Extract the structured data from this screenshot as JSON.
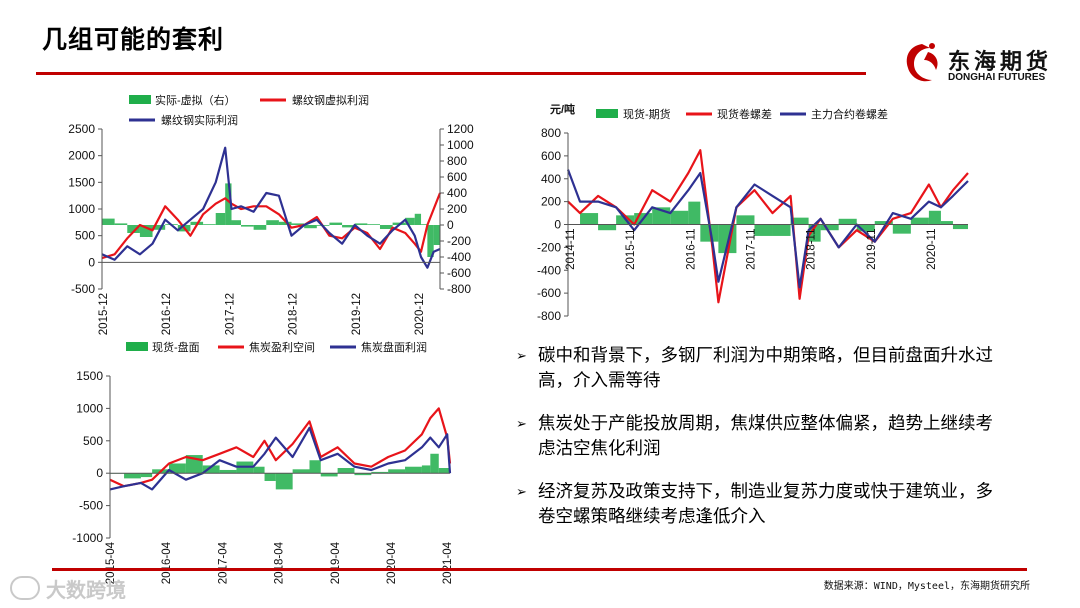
{
  "page": {
    "title": "几组可能的套利",
    "logo_cn": "东海期货",
    "logo_en": "DONGHAI FUTURES",
    "source": "数据来源：WIND，Mysteel，东海期货研究所",
    "watermark": "大数跨境",
    "colors": {
      "accent": "#c00000",
      "green": "#1fae4a",
      "red": "#e8141a",
      "blue": "#2e3192"
    }
  },
  "bullets": [
    {
      "mark": "➢",
      "text": "碳中和背景下，多钢厂利润为中期策略，但目前盘面升水过高，介入需等待"
    },
    {
      "mark": "➢",
      "text": "焦炭处于产能投放周期，焦煤供应整体偏紧，趋势上继续考虑沽空焦化利润"
    },
    {
      "mark": "➢",
      "text": "经济复苏及政策支持下，制造业复苏力度或快于建筑业，多卷空螺策略继续考虑逢低介入"
    }
  ],
  "chart_data": [
    {
      "id": "chart1",
      "type": "line",
      "title": "",
      "legend": [
        "实际-虚拟（右）",
        "螺纹钢虚拟利润",
        "螺纹钢实际利润"
      ],
      "legend_placement": "top",
      "categories": [
        "2015-12",
        "2016-12",
        "2017-12",
        "2018-12",
        "2019-12",
        "2020-12"
      ],
      "ylim": [
        -500,
        2500
      ],
      "y_ticks": [
        "2500",
        "2000",
        "1500",
        "1000",
        "500",
        "0",
        "-500"
      ],
      "y2lim": [
        -800,
        1200
      ],
      "y2_ticks": [
        "1200",
        "1000",
        "800",
        "600",
        "400",
        "200",
        "0",
        "-200",
        "-400",
        "-600",
        "-800"
      ],
      "xlim": [
        2015.9,
        2021.25
      ],
      "series": [
        {
          "name": "实际-虚拟（右）",
          "kind": "area",
          "axis": "right",
          "color": "#1fae4a",
          "x": [
            2015.9,
            2016.1,
            2016.3,
            2016.5,
            2016.7,
            2016.9,
            2017.1,
            2017.3,
            2017.5,
            2017.7,
            2017.85,
            2017.95,
            2018.1,
            2018.3,
            2018.5,
            2018.7,
            2018.9,
            2019.1,
            2019.3,
            2019.5,
            2019.7,
            2019.9,
            2020.1,
            2020.3,
            2020.5,
            2020.7,
            2020.85,
            2020.95,
            2021.05,
            2021.15,
            2021.25
          ],
          "values": [
            80,
            20,
            -100,
            -150,
            -60,
            10,
            -80,
            40,
            10,
            150,
            520,
            60,
            -20,
            -60,
            60,
            40,
            20,
            -40,
            -10,
            30,
            -30,
            20,
            10,
            -50,
            30,
            90,
            140,
            10,
            -400,
            -250,
            -550
          ]
        },
        {
          "name": "螺纹钢虚拟利润",
          "kind": "line",
          "axis": "left",
          "color": "#e8141a",
          "x": [
            2015.9,
            2016.1,
            2016.3,
            2016.5,
            2016.7,
            2016.9,
            2017.1,
            2017.3,
            2017.5,
            2017.7,
            2017.85,
            2017.95,
            2018.1,
            2018.3,
            2018.5,
            2018.7,
            2018.9,
            2019.1,
            2019.3,
            2019.5,
            2019.7,
            2019.9,
            2020.1,
            2020.3,
            2020.5,
            2020.7,
            2020.85,
            2020.95,
            2021.05,
            2021.15,
            2021.25
          ],
          "values": [
            80,
            150,
            450,
            700,
            600,
            1050,
            800,
            500,
            900,
            1100,
            1200,
            1100,
            1000,
            1050,
            1050,
            900,
            650,
            700,
            850,
            500,
            450,
            650,
            550,
            250,
            650,
            550,
            350,
            200,
            700,
            1000,
            1300
          ]
        },
        {
          "name": "螺纹钢实际利润",
          "kind": "line",
          "axis": "left",
          "color": "#2e3192",
          "x": [
            2015.9,
            2016.1,
            2016.3,
            2016.5,
            2016.7,
            2016.9,
            2017.1,
            2017.3,
            2017.5,
            2017.7,
            2017.85,
            2017.95,
            2018.1,
            2018.3,
            2018.5,
            2018.7,
            2018.9,
            2019.1,
            2019.3,
            2019.5,
            2019.7,
            2019.9,
            2020.1,
            2020.3,
            2020.5,
            2020.7,
            2020.85,
            2020.95,
            2021.05,
            2021.15,
            2021.25
          ],
          "values": [
            150,
            50,
            300,
            150,
            350,
            800,
            600,
            800,
            1000,
            1500,
            2150,
            1000,
            1050,
            950,
            1300,
            1250,
            500,
            700,
            800,
            550,
            350,
            700,
            500,
            350,
            600,
            800,
            500,
            100,
            -100,
            200,
            250
          ]
        }
      ]
    },
    {
      "id": "chart2",
      "type": "line",
      "title": "",
      "ylabel": "元/吨",
      "legend": [
        "现货-期货",
        "现货卷螺差",
        "主力合约卷螺差"
      ],
      "legend_placement": "top",
      "categories": [
        "2014-11",
        "2015-11",
        "2016-11",
        "2017-11",
        "2018-11",
        "2019-11",
        "2020-11"
      ],
      "ylim": [
        -800,
        800
      ],
      "y_ticks": [
        "800",
        "600",
        "400",
        "200",
        "0",
        "-200",
        "-400",
        "-600",
        "-800"
      ],
      "xlim": [
        2014.8,
        2021.45
      ],
      "series": [
        {
          "name": "现货-期货",
          "kind": "area",
          "color": "#1fae4a",
          "x": [
            2014.8,
            2015.0,
            2015.3,
            2015.6,
            2015.9,
            2016.2,
            2016.5,
            2016.8,
            2017.0,
            2017.3,
            2017.6,
            2017.9,
            2018.2,
            2018.5,
            2018.8,
            2019.0,
            2019.3,
            2019.6,
            2019.9,
            2020.2,
            2020.5,
            2020.8,
            2021.0,
            2021.2,
            2021.45
          ],
          "values": [
            0,
            100,
            -50,
            80,
            100,
            150,
            120,
            200,
            -150,
            -250,
            80,
            -100,
            -100,
            60,
            -150,
            -50,
            50,
            -60,
            30,
            -80,
            60,
            120,
            30,
            -40,
            100
          ]
        },
        {
          "name": "现货卷螺差",
          "kind": "line",
          "color": "#e8141a",
          "x": [
            2014.8,
            2015.0,
            2015.3,
            2015.6,
            2015.9,
            2016.2,
            2016.5,
            2016.8,
            2017.0,
            2017.2,
            2017.3,
            2017.6,
            2017.9,
            2018.2,
            2018.5,
            2018.65,
            2018.8,
            2019.0,
            2019.3,
            2019.6,
            2019.9,
            2020.2,
            2020.5,
            2020.8,
            2021.0,
            2021.2,
            2021.45
          ],
          "values": [
            200,
            100,
            250,
            150,
            0,
            300,
            200,
            450,
            650,
            -200,
            -680,
            150,
            300,
            100,
            250,
            -650,
            -100,
            50,
            -200,
            -50,
            -150,
            50,
            100,
            350,
            150,
            300,
            450
          ]
        },
        {
          "name": "主力合约卷螺差",
          "kind": "line",
          "color": "#2e3192",
          "x": [
            2014.8,
            2015.0,
            2015.3,
            2015.6,
            2015.9,
            2016.2,
            2016.5,
            2016.8,
            2017.0,
            2017.2,
            2017.3,
            2017.6,
            2017.9,
            2018.2,
            2018.5,
            2018.65,
            2018.8,
            2019.0,
            2019.3,
            2019.6,
            2019.9,
            2020.2,
            2020.5,
            2020.8,
            2021.0,
            2021.2,
            2021.45
          ],
          "values": [
            480,
            200,
            200,
            150,
            -50,
            150,
            100,
            300,
            450,
            -150,
            -500,
            150,
            350,
            250,
            150,
            -550,
            -50,
            50,
            -200,
            0,
            -150,
            100,
            50,
            200,
            150,
            250,
            380
          ]
        }
      ]
    },
    {
      "id": "chart3",
      "type": "line",
      "title": "",
      "legend": [
        "现货-盘面",
        "焦炭盈利空间",
        "焦炭盘面利润"
      ],
      "legend_placement": "top",
      "categories": [
        "2015-04",
        "2016-04",
        "2017-04",
        "2018-04",
        "2019-04",
        "2020-04",
        "2021-04"
      ],
      "ylim": [
        -1000,
        1500
      ],
      "y_ticks": [
        "1500",
        "1000",
        "500",
        "0",
        "-500",
        "-1000"
      ],
      "xlim": [
        2015.25,
        2021.3
      ],
      "series": [
        {
          "name": "现货-盘面",
          "kind": "area",
          "color": "#1fae4a",
          "x": [
            2015.25,
            2015.5,
            2015.8,
            2016.0,
            2016.3,
            2016.6,
            2016.9,
            2017.2,
            2017.5,
            2017.8,
            2018.0,
            2018.2,
            2018.5,
            2018.8,
            2019.0,
            2019.3,
            2019.6,
            2019.9,
            2020.2,
            2020.5,
            2020.8,
            2020.95,
            2021.1,
            2021.3
          ],
          "values": [
            0,
            -80,
            -60,
            60,
            150,
            280,
            120,
            50,
            180,
            100,
            -120,
            -250,
            60,
            200,
            -50,
            80,
            -30,
            20,
            60,
            100,
            120,
            300,
            80,
            -200
          ]
        },
        {
          "name": "焦炭盈利空间",
          "kind": "line",
          "color": "#e8141a",
          "x": [
            2015.25,
            2015.5,
            2015.8,
            2016.0,
            2016.3,
            2016.6,
            2016.9,
            2017.2,
            2017.5,
            2017.8,
            2018.0,
            2018.2,
            2018.5,
            2018.8,
            2019.0,
            2019.3,
            2019.6,
            2019.9,
            2020.2,
            2020.5,
            2020.8,
            2020.95,
            2021.1,
            2021.25,
            2021.3
          ],
          "values": [
            -100,
            -200,
            -150,
            -100,
            150,
            250,
            200,
            300,
            400,
            250,
            500,
            200,
            450,
            800,
            250,
            400,
            150,
            100,
            250,
            350,
            600,
            850,
            1000,
            550,
            150
          ]
        },
        {
          "name": "焦炭盘面利润",
          "kind": "line",
          "color": "#2e3192",
          "x": [
            2015.25,
            2015.5,
            2015.8,
            2016.0,
            2016.3,
            2016.6,
            2016.9,
            2017.2,
            2017.5,
            2017.8,
            2018.0,
            2018.2,
            2018.5,
            2018.8,
            2019.0,
            2019.3,
            2019.6,
            2019.9,
            2020.2,
            2020.5,
            2020.8,
            2020.95,
            2021.1,
            2021.25,
            2021.3
          ],
          "values": [
            -250,
            -200,
            -150,
            -250,
            50,
            -100,
            0,
            200,
            100,
            100,
            300,
            550,
            250,
            700,
            200,
            300,
            100,
            50,
            150,
            200,
            400,
            550,
            400,
            600,
            0
          ]
        }
      ]
    }
  ]
}
